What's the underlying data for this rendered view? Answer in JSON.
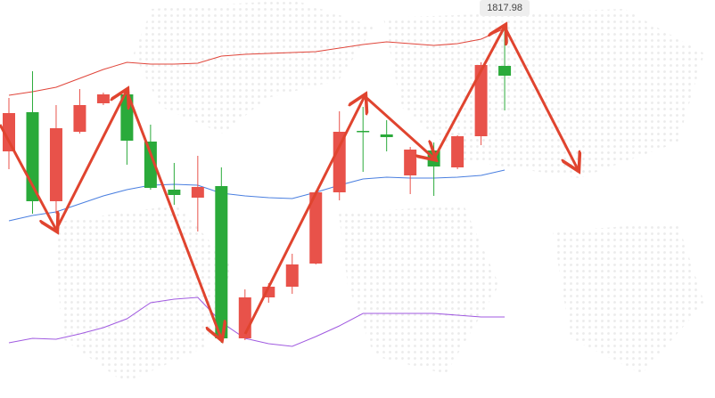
{
  "chart_data": {
    "type": "candlestick",
    "annotation": "1817.98",
    "ylim": [
      1734.6,
      1824
    ],
    "up_color": "#e8524a",
    "down_color": "#2aaa3a",
    "open": [
      1790,
      1798.8,
      1778.8,
      1794.4,
      1800.8,
      1802.8,
      1792.2,
      1781.4,
      1779.6,
      1782.2,
      1748,
      1757.2,
      1759.6,
      1764.8,
      1780.8,
      1794.6,
      1793.8,
      1784.6,
      1790.2,
      1786.4,
      1793.4,
      1809.2
    ],
    "high": [
      1802,
      1808,
      1800.4,
      1804,
      1803.2,
      1804,
      1796,
      1787.4,
      1789,
      1786.4,
      1759,
      1760.4,
      1767,
      1781.2,
      1799,
      1800,
      1797,
      1791,
      1792,
      1793.6,
      1810,
      1817.98
    ],
    "low": [
      1786,
      1776,
      1776,
      1794,
      1800.4,
      1787,
      1781.4,
      1778,
      1772,
      1747,
      1747.6,
      1756,
      1758,
      1764.6,
      1779,
      1785.4,
      1790,
      1780.4,
      1780,
      1786,
      1791.4,
      1799.2
    ],
    "close": [
      1798.6,
      1778.8,
      1795.2,
      1800.4,
      1802.8,
      1792.4,
      1781.8,
      1780.2,
      1782,
      1748,
      1757.2,
      1759.6,
      1764.6,
      1780.8,
      1794.4,
      1794.4,
      1793.2,
      1790.4,
      1786.6,
      1793.4,
      1809.4,
      1807
    ],
    "bands": [
      {
        "color": "#e0453a",
        "values": [
          1802.6,
          1803.4,
          1804.4,
          1806.4,
          1808.4,
          1810,
          1809.6,
          1809.6,
          1809.8,
          1811.4,
          1811.8,
          1812,
          1812.2,
          1812.4,
          1813.2,
          1814,
          1814.6,
          1814.2,
          1813.8,
          1814.2,
          1815.2,
          1817.6
        ]
      },
      {
        "color": "#4a7fe0",
        "values": [
          1774.4,
          1775.6,
          1776.4,
          1778.2,
          1780,
          1781.4,
          1782.4,
          1782.6,
          1782.4,
          1780.6,
          1780,
          1779.6,
          1779.4,
          1780.8,
          1782.4,
          1783.8,
          1784.2,
          1784,
          1784,
          1784.2,
          1784.6,
          1785.8
        ]
      },
      {
        "color": "#a05ae0",
        "values": [
          1747,
          1748,
          1747.8,
          1749,
          1750.4,
          1752.4,
          1756,
          1756.8,
          1757.2,
          1751.6,
          1748,
          1746.8,
          1746.2,
          1748.4,
          1750.8,
          1753.6,
          1753.6,
          1753.6,
          1753.6,
          1753.2,
          1752.8,
          1752.8
        ]
      }
    ]
  }
}
